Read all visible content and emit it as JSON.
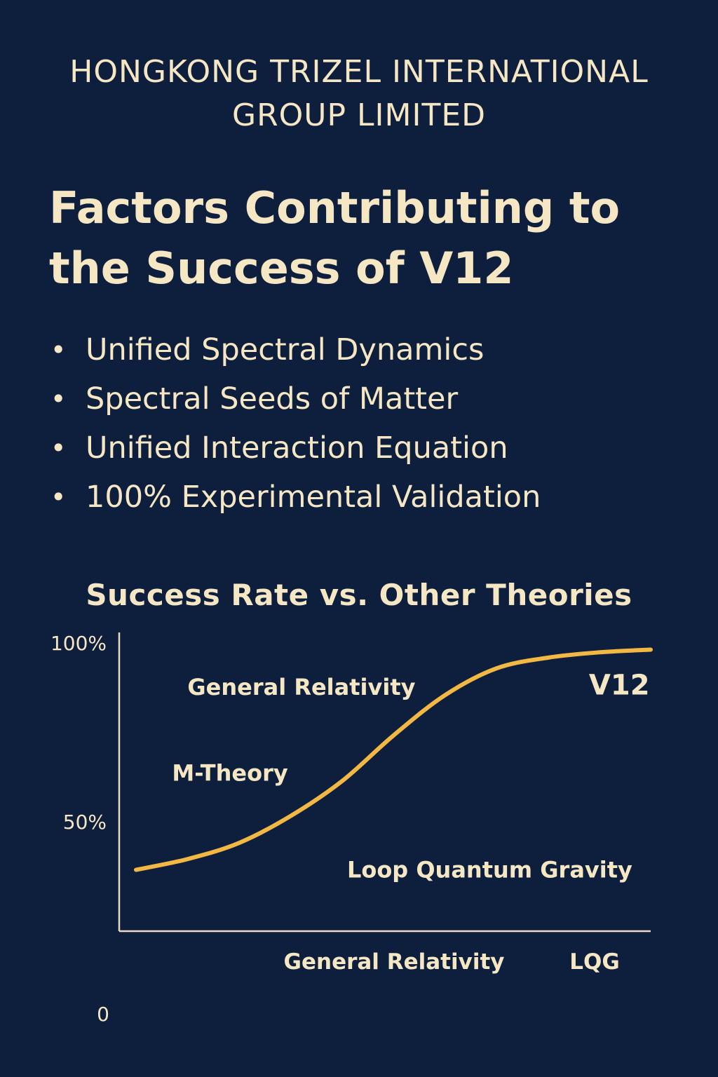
{
  "company": {
    "line1": "HONGKONG TRIZEL INTERNATIONAL",
    "line2": "GROUP LIMITED"
  },
  "headline": {
    "line1": "Factors Contributing to",
    "line2": "the Success of V12"
  },
  "factors": [
    "Unified Spectral Dynamics",
    "Spectral Seeds of Matter",
    "Unified Interaction Equation",
    "100% Experimental Validation"
  ],
  "chart_title": "Success Rate vs. Other Theories",
  "chart_data": {
    "type": "line",
    "title": "Success Rate vs. Other Theories",
    "xlabel": "",
    "ylabel": "",
    "y_tick_labels": [
      "100%",
      "50%",
      "0"
    ],
    "x_tick_labels": [
      "General Relativity",
      "LQG"
    ],
    "ylim": [
      0,
      100
    ],
    "xlim": [
      0,
      100
    ],
    "grid": false,
    "series": [
      {
        "name": "V12",
        "color": "#f2b843",
        "x": [
          0,
          10,
          20,
          30,
          40,
          50,
          60,
          70,
          80,
          90,
          100
        ],
        "y": [
          15,
          19,
          25,
          35,
          48,
          65,
          80,
          90,
          94,
          96,
          97
        ]
      }
    ],
    "annotations": [
      {
        "text": "General Relativity",
        "x": 10,
        "y": 83
      },
      {
        "text": "M-Theory",
        "x": 7,
        "y": 51
      },
      {
        "text": "Loop Quantum Gravity",
        "x": 41,
        "y": 15
      },
      {
        "text": "V12",
        "x": 88,
        "y": 84
      }
    ]
  }
}
